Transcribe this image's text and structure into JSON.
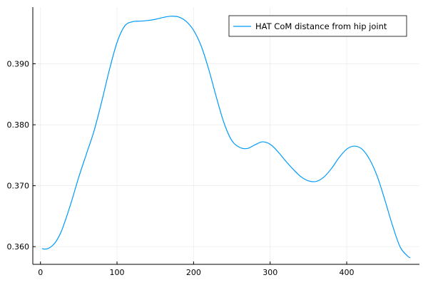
{
  "chart_data": {
    "type": "line",
    "title": "",
    "xlabel": "",
    "ylabel": "",
    "xlim": [
      -10,
      495
    ],
    "ylim": [
      0.3571,
      0.3993
    ],
    "x_ticks": [
      0,
      100,
      200,
      300,
      400
    ],
    "x_tick_labels": [
      "0",
      "100",
      "200",
      "300",
      "400"
    ],
    "y_ticks": [
      0.36,
      0.37,
      0.38,
      0.39
    ],
    "y_tick_labels": [
      "0.360",
      "0.370",
      "0.380",
      "0.390"
    ],
    "grid": true,
    "legend_position": "top-right",
    "series": [
      {
        "name": "HAT CoM distance from hip joint",
        "color": "#009af9",
        "x": [
          2,
          5,
          10,
          15,
          20,
          25,
          30,
          40,
          50,
          60,
          70,
          80,
          90,
          100,
          110,
          120,
          130,
          140,
          150,
          160,
          170,
          180,
          190,
          200,
          210,
          220,
          230,
          240,
          250,
          260,
          270,
          280,
          290,
          300,
          310,
          320,
          330,
          340,
          350,
          360,
          370,
          380,
          390,
          400,
          410,
          420,
          430,
          440,
          450,
          460,
          470,
          480,
          483
        ],
        "y": [
          0.3597,
          0.3596,
          0.3597,
          0.3601,
          0.3608,
          0.3619,
          0.3634,
          0.3672,
          0.3714,
          0.3752,
          0.379,
          0.3838,
          0.389,
          0.3935,
          0.3962,
          0.3969,
          0.397,
          0.3971,
          0.3973,
          0.3976,
          0.3978,
          0.3977,
          0.397,
          0.3955,
          0.3929,
          0.389,
          0.3844,
          0.3802,
          0.3774,
          0.3763,
          0.3761,
          0.3767,
          0.3772,
          0.3768,
          0.3756,
          0.3741,
          0.3727,
          0.3715,
          0.3708,
          0.3707,
          0.3714,
          0.3728,
          0.3746,
          0.376,
          0.3765,
          0.376,
          0.3743,
          0.3715,
          0.3676,
          0.3634,
          0.3599,
          0.3584,
          0.3582
        ]
      }
    ]
  }
}
